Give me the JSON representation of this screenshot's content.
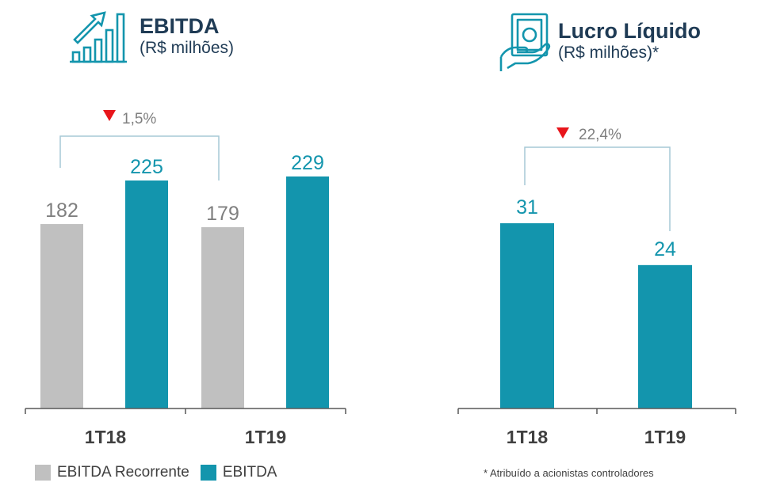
{
  "colors": {
    "recurring": "#c0c0c0",
    "ebitda": "#1395ad",
    "accent_text": "#1395ad",
    "gray_text": "#7f7f7f",
    "arrow_down": "#e8151b",
    "bracket": "#a6c9d6",
    "title": "#1f3b55"
  },
  "icons": {
    "ebitda_icon": "growth-chart-icon",
    "lucro_icon": "hand-money-icon",
    "arrow": "down-triangle-icon"
  },
  "ebitda": {
    "title": "EBITDA",
    "subtitle": "(R$ milhões)",
    "variation": "1,5%",
    "legend": [
      "EBITDA Recorrente",
      "EBITDA"
    ]
  },
  "lucro": {
    "title": "Lucro Líquido",
    "subtitle": "(R$ milhões)*",
    "variation": "22,4%",
    "footnote": "* Atribuído a acionistas controladores"
  },
  "chart_data": [
    {
      "type": "bar",
      "title": "EBITDA",
      "categories": [
        "1T18",
        "1T19"
      ],
      "series": [
        {
          "name": "EBITDA Recorrente",
          "values": [
            182,
            179
          ],
          "labels": [
            "182",
            "179"
          ]
        },
        {
          "name": "EBITDA",
          "values": [
            225,
            229
          ],
          "labels": [
            "225",
            "229"
          ]
        }
      ],
      "annotations": [
        {
          "text": "1,5%",
          "from": "EBITDA Recorrente 1T18",
          "to": "EBITDA Recorrente 1T19",
          "direction": "down"
        }
      ],
      "ylim": [
        0,
        310
      ],
      "grid": false,
      "legend_position": "bottom-left"
    },
    {
      "type": "bar",
      "title": "Lucro Líquido",
      "categories": [
        "1T18",
        "1T19"
      ],
      "series": [
        {
          "values": [
            31,
            24
          ],
          "labels": [
            "31",
            "24"
          ]
        }
      ],
      "annotations": [
        {
          "text": "22,4%",
          "from": "1T18",
          "to": "1T19",
          "direction": "down"
        }
      ],
      "ylim": [
        0,
        40
      ],
      "grid": false
    }
  ]
}
